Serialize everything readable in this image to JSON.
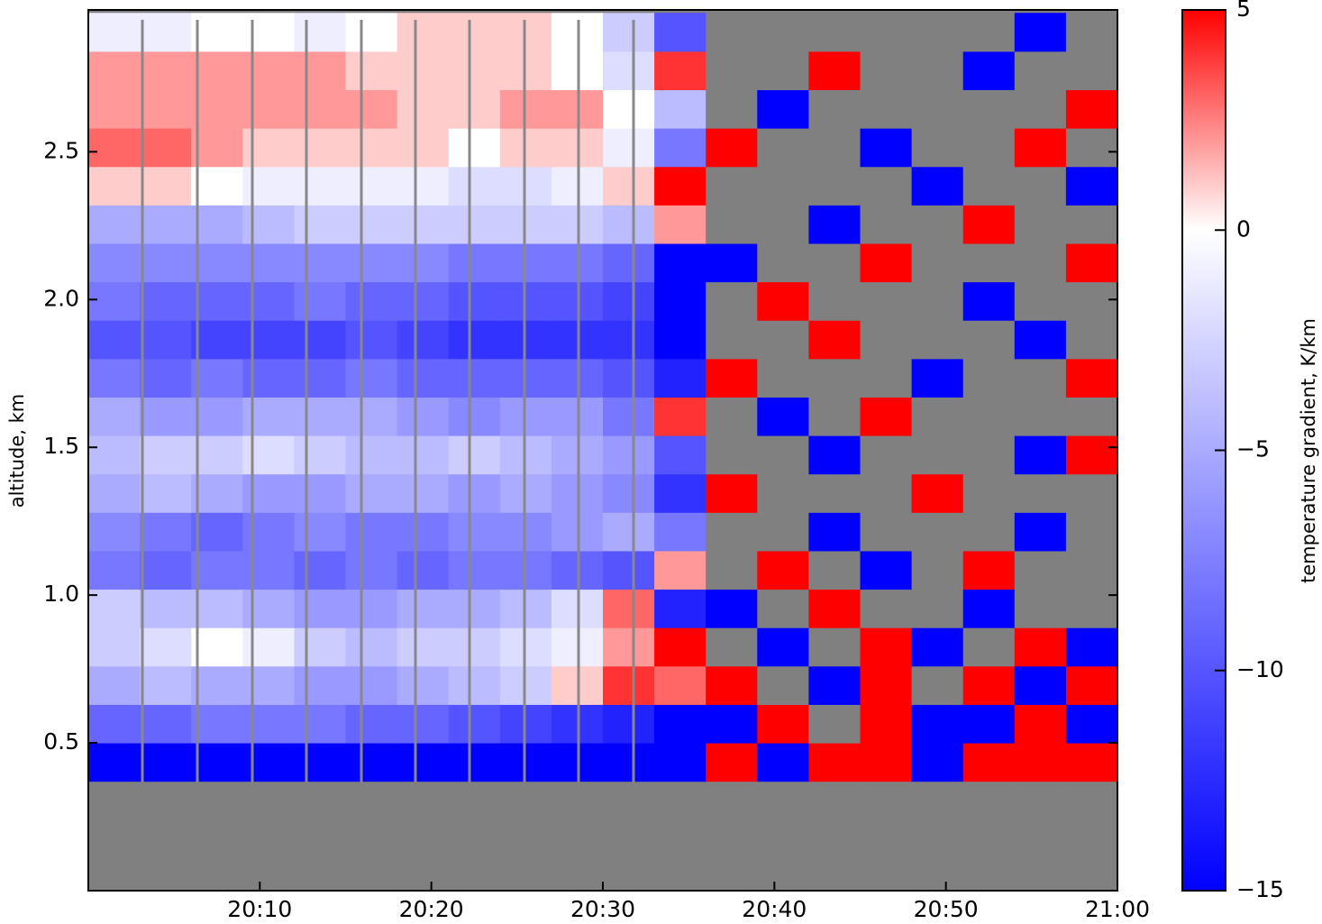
{
  "chart_data": {
    "type": "heatmap",
    "y_label": "altitude, km",
    "colorbar_label": "temperature gradient, K/km",
    "xbins": [
      1200,
      1203,
      1206,
      1209,
      1212,
      1215,
      1218,
      1221,
      1224,
      1227,
      1230,
      1233,
      1236,
      1239,
      1242,
      1245,
      1248,
      1251,
      1254,
      1257,
      1260
    ],
    "ybins": [
      0,
      0.37,
      0.5,
      0.63,
      0.76,
      0.89,
      1.02,
      1.15,
      1.28,
      1.41,
      1.54,
      1.67,
      1.8,
      1.93,
      2.06,
      2.19,
      2.32,
      2.45,
      2.58,
      2.71,
      2.84,
      2.97
    ],
    "z": [
      [
        null,
        null,
        null,
        null,
        null,
        null,
        null,
        null,
        null,
        null,
        null,
        null,
        null,
        null,
        null,
        null,
        null,
        null,
        null,
        null
      ],
      [
        -15,
        -15,
        -15,
        -15,
        -15,
        -15,
        -15,
        -15,
        -15,
        -15,
        -15,
        -15,
        5,
        -15,
        5,
        5,
        -15,
        5,
        5,
        5
      ],
      [
        -9,
        -9,
        -8,
        -8,
        -8,
        -9,
        -9,
        -10,
        -11,
        -12,
        -13,
        -15,
        -15,
        5,
        null,
        5,
        -15,
        -15,
        5,
        -15
      ],
      [
        -5,
        -4,
        -5,
        -5,
        -6,
        -6,
        -5,
        -4,
        -3,
        1,
        4,
        3,
        5,
        null,
        -15,
        5,
        null,
        5,
        -15,
        5
      ],
      [
        -3,
        -2,
        0,
        -1,
        -3,
        -4,
        -3,
        -3,
        -2,
        -1,
        2,
        5,
        null,
        -15,
        null,
        5,
        -15,
        null,
        5,
        -15
      ],
      [
        -3,
        -4,
        -4,
        -5,
        -6,
        -6,
        -5,
        -5,
        -4,
        -2,
        3,
        -13,
        -15,
        null,
        5,
        null,
        null,
        -15,
        null,
        null
      ],
      [
        -8,
        -9,
        -8,
        -8,
        -9,
        -8,
        -9,
        -8,
        -8,
        -9,
        -10,
        2,
        null,
        5,
        null,
        -15,
        null,
        5,
        null,
        null
      ],
      [
        -7,
        -8,
        -9,
        -8,
        -7,
        -8,
        -8,
        -7,
        -7,
        -6,
        -5,
        -8,
        null,
        null,
        -15,
        null,
        null,
        null,
        -15,
        null
      ],
      [
        -5,
        -4,
        -5,
        -6,
        -6,
        -5,
        -5,
        -6,
        -5,
        -6,
        -7,
        -12,
        5,
        null,
        null,
        null,
        5,
        null,
        null,
        null
      ],
      [
        -4,
        -3,
        -3,
        -2,
        -3,
        -4,
        -4,
        -3,
        -4,
        -5,
        -6,
        -10,
        null,
        null,
        -15,
        null,
        null,
        null,
        -15,
        5
      ],
      [
        -5,
        -6,
        -6,
        -5,
        -5,
        -5,
        -6,
        -7,
        -6,
        -6,
        -8,
        4,
        null,
        -15,
        null,
        5,
        null,
        null,
        null,
        null
      ],
      [
        -8,
        -9,
        -8,
        -9,
        -9,
        -8,
        -9,
        -9,
        -9,
        -9,
        -10,
        -13,
        5,
        null,
        null,
        null,
        -15,
        null,
        null,
        5
      ],
      [
        -10,
        -10,
        -11,
        -11,
        -11,
        -10,
        -11,
        -12,
        -12,
        -12,
        -12,
        -15,
        null,
        null,
        5,
        null,
        null,
        null,
        -15,
        null
      ],
      [
        -8,
        -9,
        -9,
        -9,
        -8,
        -9,
        -9,
        -10,
        -10,
        -10,
        -11,
        -15,
        null,
        5,
        null,
        null,
        null,
        -15,
        null,
        null
      ],
      [
        -7,
        -7,
        -7,
        -7,
        -7,
        -7,
        -7,
        -8,
        -8,
        -8,
        -9,
        -15,
        -15,
        null,
        null,
        5,
        null,
        null,
        null,
        5
      ],
      [
        -5,
        -5,
        -5,
        -4,
        -3,
        -3,
        -3,
        -3,
        -3,
        -3,
        -4,
        2,
        null,
        null,
        -15,
        null,
        null,
        5,
        null,
        null
      ],
      [
        1,
        1,
        0,
        -1,
        -1,
        -1,
        -1,
        -2,
        -2,
        -1,
        1,
        5,
        null,
        null,
        null,
        null,
        -15,
        null,
        null,
        -15
      ],
      [
        3,
        3,
        2,
        1,
        1,
        1,
        1,
        0,
        1,
        1,
        -1,
        -8,
        5,
        null,
        null,
        -15,
        null,
        null,
        5,
        null
      ],
      [
        2,
        2,
        2,
        2,
        2,
        2,
        1,
        1,
        2,
        2,
        0,
        -4,
        null,
        -15,
        null,
        null,
        null,
        null,
        null,
        5
      ],
      [
        2,
        2,
        2,
        2,
        2,
        1,
        1,
        1,
        1,
        0,
        -2,
        4,
        null,
        null,
        5,
        null,
        null,
        -15,
        null,
        null
      ],
      [
        -1,
        -1,
        0,
        0,
        -1,
        0,
        1,
        1,
        1,
        0,
        -3,
        -10,
        null,
        null,
        null,
        null,
        null,
        null,
        -15,
        null
      ]
    ],
    "xlim": [
      1200,
      1260
    ],
    "xticks": [
      {
        "value": 1210,
        "label": "20:10"
      },
      {
        "value": 1220,
        "label": "20:20"
      },
      {
        "value": 1230,
        "label": "20:30"
      },
      {
        "value": 1240,
        "label": "20:40"
      },
      {
        "value": 1250,
        "label": "20:50"
      },
      {
        "value": 1260,
        "label": "21:00"
      }
    ],
    "ylim": [
      0,
      2.98
    ],
    "yticks": [
      0.5,
      {
        "value": 1,
        "label": "1.0"
      },
      1.5,
      {
        "value": 2,
        "label": "2.0"
      },
      2.5
    ],
    "zlim": [
      -15,
      5
    ],
    "cmap_center": 0,
    "cmap": [
      "#0000ff",
      "#ffffff",
      "#ff0000"
    ],
    "nan_color": "#808080",
    "zticks": [
      5,
      0,
      {
        "value": -5,
        "label": "−5"
      },
      {
        "value": -10,
        "label": "−10"
      },
      {
        "value": -15,
        "label": "−15"
      }
    ]
  }
}
